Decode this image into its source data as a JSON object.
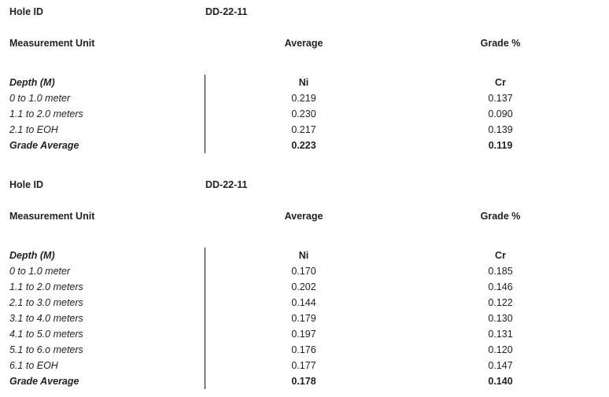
{
  "tables": [
    {
      "hole_id_label": "Hole ID",
      "hole_id": "DD-22-11",
      "unit_label": "Measurement Unit",
      "average_label": "Average",
      "grade_label": "Grade %",
      "header": [
        "Depth (M)",
        "Ni",
        "Cr"
      ],
      "rows": [
        [
          "0 to 1.0 meter",
          "0.219",
          "0.137"
        ],
        [
          "1.1 to 2.0 meters",
          "0.230",
          "0.090"
        ],
        [
          "2.1 to EOH",
          "0.217",
          "0.139"
        ]
      ],
      "footer": [
        "Grade Average",
        "0.223",
        "0.119"
      ]
    },
    {
      "hole_id_label": "Hole ID",
      "hole_id": "DD-22-11",
      "unit_label": "Measurement Unit",
      "average_label": "Average",
      "grade_label": "Grade %",
      "header": [
        "Depth (M)",
        "Ni",
        "Cr"
      ],
      "rows": [
        [
          "0 to 1.0 meter",
          "0.170",
          "0.185"
        ],
        [
          "1.1 to 2.0 meters",
          "0.202",
          "0.146"
        ],
        [
          "2.1 to 3.0 meters",
          "0.144",
          "0.122"
        ],
        [
          "3.1 to 4.0 meters",
          "0.179",
          "0.130"
        ],
        [
          "4.1 to 5.0 meters",
          "0.197",
          "0.131"
        ],
        [
          "5.1 to 6.o meters",
          "0.176",
          "0.120"
        ],
        [
          "6.1 to EOH",
          "0.177",
          "0.147"
        ]
      ],
      "footer": [
        "Grade Average",
        "0.178",
        "0.140"
      ]
    }
  ]
}
